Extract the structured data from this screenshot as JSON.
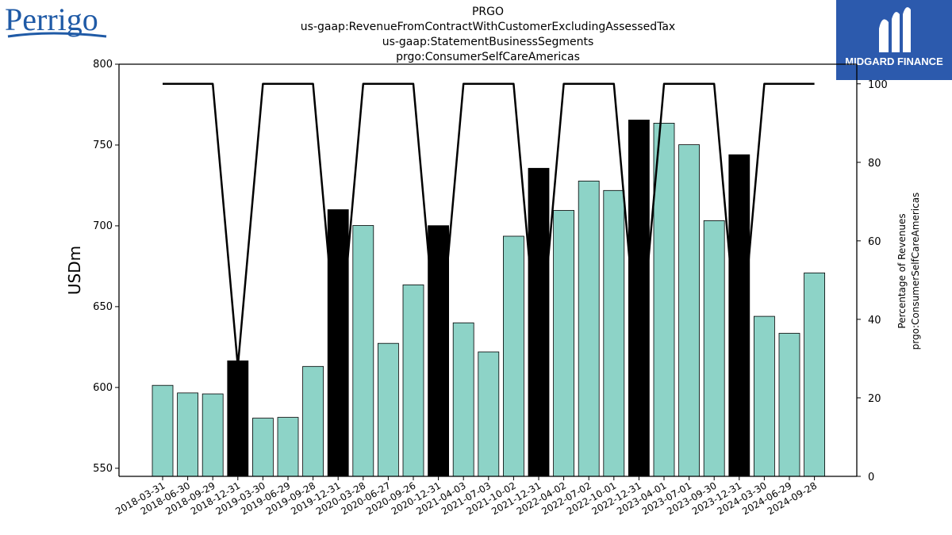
{
  "header": {
    "lines": [
      "PRGO",
      "us-gaap:RevenueFromContractWithCustomerExcludingAssessedTax",
      "us-gaap:StatementBusinessSegments",
      "prgo:ConsumerSelfCareAmericas"
    ]
  },
  "logos": {
    "left": {
      "text": "Perrigo",
      "icon": "perrigo-logo",
      "color": "#1f5aa6"
    },
    "right": {
      "text": "MIDGARD FINANCE",
      "icon": "midgard-logo",
      "color": "#2c5aad"
    }
  },
  "chart_data": {
    "type": "bar",
    "ylabel": "USDm",
    "y2label_lines": [
      "Percentage of Revenues",
      "prgo:ConsumerSelfCareAmericas"
    ],
    "ylim": [
      545,
      800
    ],
    "yticks": [
      550,
      600,
      650,
      700,
      750,
      800
    ],
    "y2lim": [
      0,
      105
    ],
    "y2ticks": [
      0,
      20,
      40,
      60,
      80,
      100
    ],
    "categories": [
      "2018-03-31",
      "2018-06-30",
      "2018-09-29",
      "2018-12-31",
      "2019-03-30",
      "2019-06-29",
      "2019-09-28",
      "2019-12-31",
      "2020-03-28",
      "2020-06-27",
      "2020-09-26",
      "2020-12-31",
      "2021-04-03",
      "2021-07-03",
      "2021-10-02",
      "2021-12-31",
      "2022-04-02",
      "2022-07-02",
      "2022-10-01",
      "2022-12-31",
      "2023-04-01",
      "2023-07-01",
      "2023-09-30",
      "2023-12-31",
      "2024-03-30",
      "2024-06-29",
      "2024-09-28"
    ],
    "series": [
      {
        "values": [
          601.3,
          596.6,
          596.0,
          616.5,
          581.0,
          581.5,
          613.0,
          710.0,
          700.2,
          627.3,
          663.5,
          700.1,
          640.0,
          622.0,
          693.6,
          735.6,
          709.5,
          727.7,
          721.9,
          765.5,
          763.5,
          750.2,
          703.2,
          744.0,
          644.0,
          633.5,
          670.9
        ],
        "bar_colors": [
          "#8dd3c7",
          "#8dd3c7",
          "#8dd3c7",
          "#000000",
          "#8dd3c7",
          "#8dd3c7",
          "#8dd3c7",
          "#000000",
          "#8dd3c7",
          "#8dd3c7",
          "#8dd3c7",
          "#000000",
          "#8dd3c7",
          "#8dd3c7",
          "#8dd3c7",
          "#000000",
          "#8dd3c7",
          "#8dd3c7",
          "#8dd3c7",
          "#000000",
          "#8dd3c7",
          "#8dd3c7",
          "#8dd3c7",
          "#000000",
          "#8dd3c7",
          "#8dd3c7",
          "#8dd3c7"
        ]
      },
      {
        "type": "line",
        "axis": "right",
        "values": [
          100,
          100,
          100,
          28,
          100,
          100,
          100,
          28,
          100,
          100,
          100,
          28,
          100,
          100,
          100,
          28,
          100,
          100,
          100,
          28,
          100,
          100,
          100,
          28,
          100,
          100,
          100
        ]
      }
    ],
    "grid": false
  }
}
